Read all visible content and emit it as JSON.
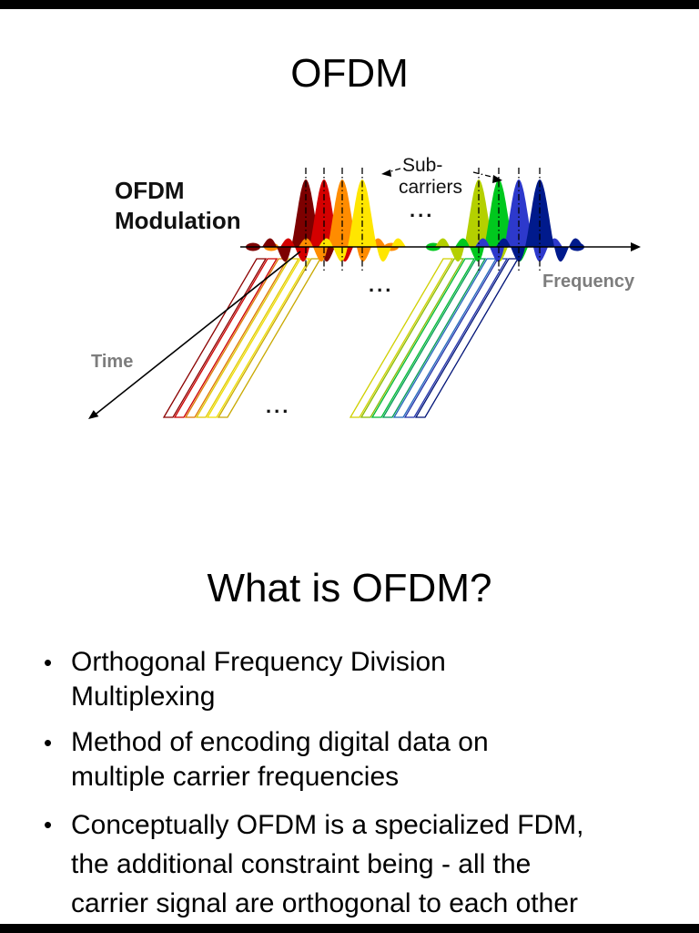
{
  "page": {
    "background": "#ffffff",
    "letterbox_color": "#000000"
  },
  "slide1": {
    "title": "OFDM",
    "diagram": {
      "modulation_line1": "OFDM",
      "modulation_line2": "Modulation",
      "subcarriers_line1": "Sub-",
      "subcarriers_line2": "carriers",
      "frequency_label": "Frequency",
      "time_label": "Time",
      "dots": "...",
      "axis_color": "#000000",
      "axis_label_color": "#7d7d7d",
      "left_pulse_colors": [
        "#7d0000",
        "#d40000",
        "#ff8c00",
        "#ffe600"
      ],
      "right_pulse_colors": [
        "#b4d000",
        "#00c81e",
        "#2d39cc",
        "#001a8c"
      ],
      "left_symbol_colors": [
        "#8b0000",
        "#cc0000",
        "#dd7700",
        "#e0c800",
        "#eedd00",
        "#c8a800"
      ],
      "right_symbol_colors": [
        "#d0d000",
        "#88bb00",
        "#00bb33",
        "#009955",
        "#2266bb",
        "#2233aa",
        "#001377"
      ]
    }
  },
  "slide2": {
    "title": "What is OFDM?",
    "bullet_char": "•",
    "bullets": [
      "Orthogonal Frequency Division\nMultiplexing",
      "Method of encoding digital data on\nmultiple carrier frequencies",
      "Conceptually OFDM is a specialized FDM,\nthe additional constraint being - all the\ncarrier signal are orthogonal to each other"
    ]
  }
}
